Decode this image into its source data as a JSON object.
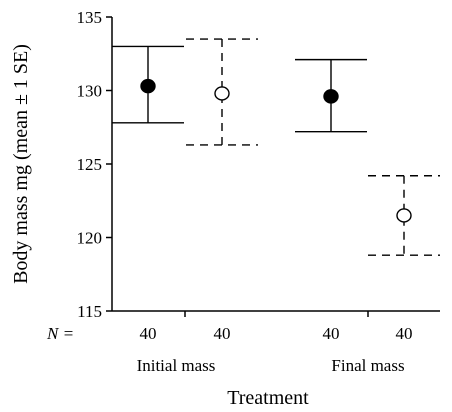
{
  "chart_data": {
    "type": "scatter",
    "title": "",
    "xlabel": "Treatment",
    "ylabel": "Body mass mg (mean ± 1 SE)",
    "ylim": [
      115,
      135
    ],
    "yticks": [
      115,
      120,
      125,
      130,
      135
    ],
    "grid": false,
    "groups": [
      "Initial mass",
      "Final mass"
    ],
    "n_label": "N =",
    "points": [
      {
        "group": "Initial mass",
        "marker": "filled",
        "line": "solid",
        "mean": 130.3,
        "lower": 127.8,
        "upper": 133.0,
        "n": "40"
      },
      {
        "group": "Initial mass",
        "marker": "open",
        "line": "dashed",
        "mean": 129.8,
        "lower": 126.3,
        "upper": 133.5,
        "n": "40"
      },
      {
        "group": "Final mass",
        "marker": "filled",
        "line": "solid",
        "mean": 129.6,
        "lower": 127.2,
        "upper": 132.1,
        "n": "40"
      },
      {
        "group": "Final mass",
        "marker": "open",
        "line": "dashed",
        "mean": 121.5,
        "lower": 118.8,
        "upper": 124.2,
        "n": "40"
      }
    ]
  }
}
